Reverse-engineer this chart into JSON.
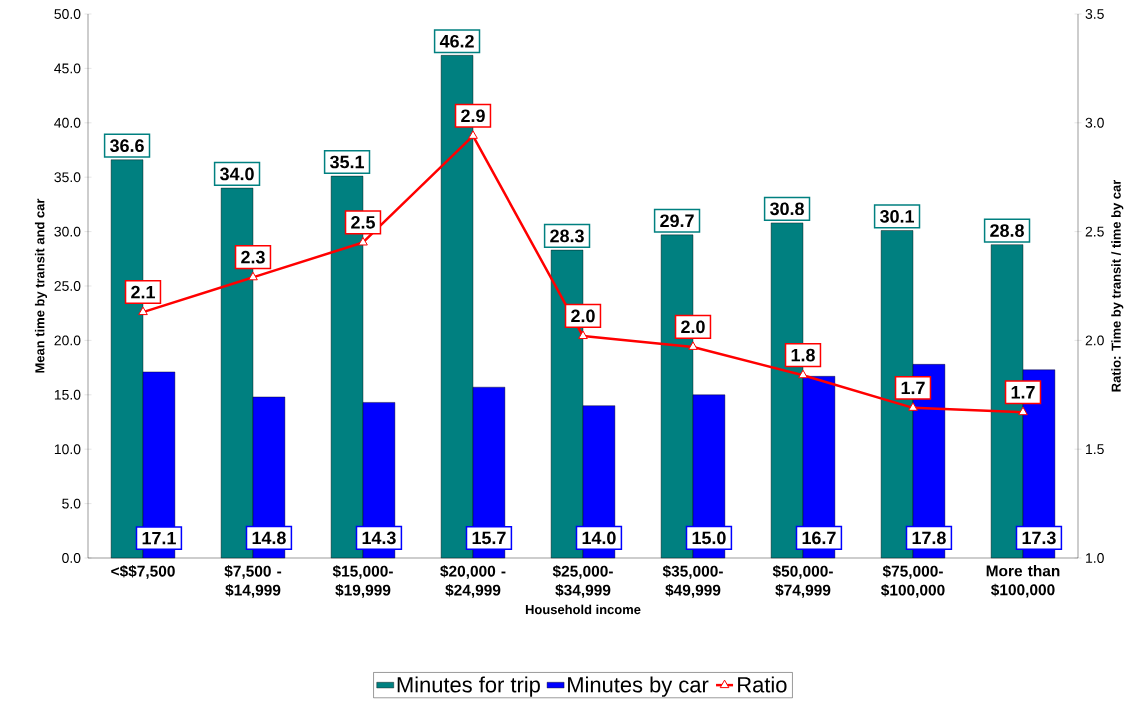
{
  "chart_data": {
    "type": "bar",
    "xlabel": "Household income",
    "ylabel": "Mean time by transit and car",
    "y2label": "Ratio: Time by transit / time by car",
    "categories": [
      "<$$7,500",
      "$7,500 - $14,999",
      "$15,000-$19,999",
      "$20,000 - $24,999",
      "$25,000-$34,999",
      "$35,000-$49,999",
      "$50,000-$74,999",
      "$75,000-$100,000",
      "More than $100,000"
    ],
    "ylim": [
      0,
      50
    ],
    "yticks": [
      {
        "value": 0,
        "label": "0.0"
      },
      {
        "value": 5,
        "label": "5.0"
      },
      {
        "value": 10,
        "label": "10.0"
      },
      {
        "value": 15,
        "label": "15.0"
      },
      {
        "value": 20,
        "label": "20.0"
      },
      {
        "value": 25,
        "label": "25.0"
      },
      {
        "value": 30,
        "label": "30.0"
      },
      {
        "value": 35,
        "label": "35.0"
      },
      {
        "value": 40,
        "label": "40.0"
      },
      {
        "value": 45,
        "label": "45.0"
      },
      {
        "value": 50,
        "label": "50.0"
      }
    ],
    "y2lim": [
      1,
      3.5
    ],
    "y2ticks": [
      {
        "value": 1,
        "label": "1.0"
      },
      {
        "value": 1.5,
        "label": "1.5"
      },
      {
        "value": 2,
        "label": "2.0"
      },
      {
        "value": 2.5,
        "label": "2.5"
      },
      {
        "value": 3,
        "label": "3.0"
      },
      {
        "value": 3.5,
        "label": "3.5"
      }
    ],
    "legend": "bottom",
    "series": [
      {
        "name": "Minutes for trip",
        "color": "#008080",
        "values": [
          36.6,
          34.0,
          35.1,
          46.2,
          28.3,
          29.7,
          30.8,
          30.1,
          28.8
        ],
        "value_labels": [
          "36.6",
          "34.0",
          "35.1",
          "46.2",
          "28.3",
          "29.7",
          "30.8",
          "30.1",
          "28.8"
        ]
      },
      {
        "name": "Minutes by car",
        "color": "#0000ff",
        "values": [
          17.1,
          14.8,
          14.3,
          15.7,
          14.0,
          15.0,
          16.7,
          17.8,
          17.3
        ],
        "value_labels": [
          "17.1",
          "14.8",
          "14.3",
          "15.7",
          "14.0",
          "15.0",
          "16.7",
          "17.8",
          "17.3"
        ]
      },
      {
        "name": "Ratio",
        "type": "line",
        "axis": "y2",
        "color": "#ff0000",
        "marker": "triangle",
        "line_style": "solid",
        "values": [
          2.13,
          2.29,
          2.45,
          2.94,
          2.02,
          1.97,
          1.84,
          1.69,
          1.67
        ],
        "value_labels": [
          "2.1",
          "2.3",
          "2.5",
          "2.9",
          "2.0",
          "2.0",
          "1.8",
          "1.7",
          "1.7"
        ]
      }
    ]
  }
}
